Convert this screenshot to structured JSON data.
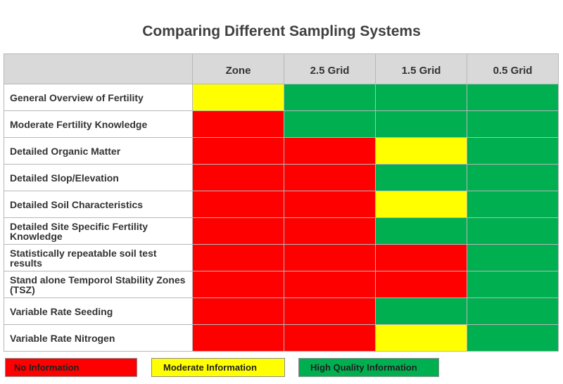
{
  "title": "Comparing Different Sampling Systems",
  "colors": {
    "red": "#ff0000",
    "yellow": "#ffff00",
    "green": "#00b050",
    "header_bg": "#d9d9d9"
  },
  "columns": [
    "Zone",
    "2.5 Grid",
    "1.5 Grid",
    "0.5 Grid"
  ],
  "rows": [
    {
      "label": "General Overview of Fertility",
      "ratings": [
        "yellow",
        "green",
        "green",
        "green"
      ]
    },
    {
      "label": "Moderate Fertility Knowledge",
      "ratings": [
        "red",
        "green",
        "green",
        "green"
      ]
    },
    {
      "label": "Detailed Organic Matter",
      "ratings": [
        "red",
        "red",
        "yellow",
        "green"
      ]
    },
    {
      "label": "Detailed Slop/Elevation",
      "ratings": [
        "red",
        "red",
        "green",
        "green"
      ]
    },
    {
      "label": "Detailed Soil Characteristics",
      "ratings": [
        "red",
        "red",
        "yellow",
        "green"
      ]
    },
    {
      "label": "Detailed Site Specific Fertility Knowledge",
      "ratings": [
        "red",
        "red",
        "green",
        "green"
      ]
    },
    {
      "label": "Statistically repeatable soil test results",
      "ratings": [
        "red",
        "red",
        "red",
        "green"
      ]
    },
    {
      "label": "Stand alone Temporol Stability Zones (TSZ)",
      "ratings": [
        "red",
        "red",
        "red",
        "green"
      ]
    },
    {
      "label": "Variable Rate Seeding",
      "ratings": [
        "red",
        "red",
        "green",
        "green"
      ]
    },
    {
      "label": "Variable Rate Nitrogen",
      "ratings": [
        "red",
        "red",
        "yellow",
        "green"
      ]
    }
  ],
  "legend": [
    {
      "label": "No Information",
      "color": "red"
    },
    {
      "label": "Moderate Information",
      "color": "yellow"
    },
    {
      "label": "High Quality Information",
      "color": "green"
    }
  ]
}
